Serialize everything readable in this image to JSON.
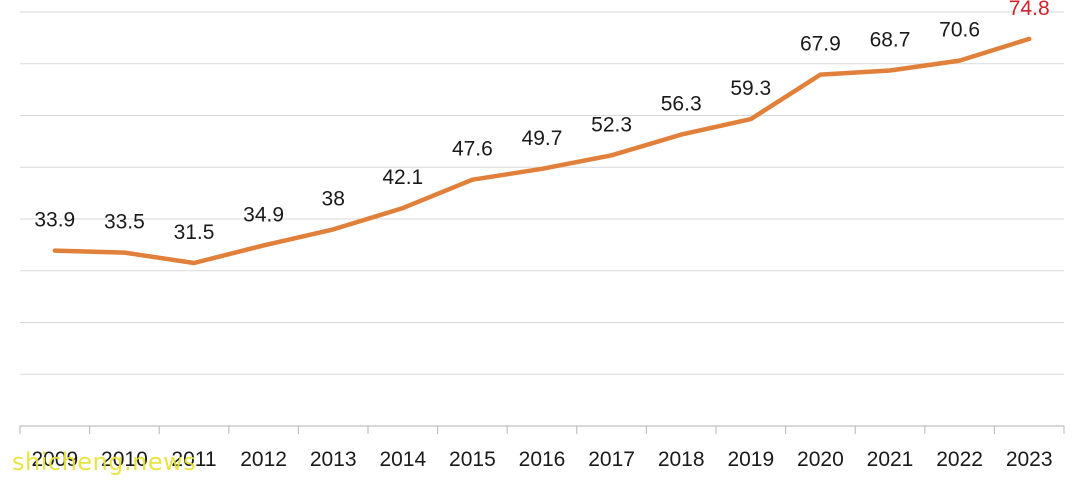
{
  "chart_data": {
    "type": "line",
    "x": [
      "2009",
      "2010",
      "2011",
      "2012",
      "2013",
      "2014",
      "2015",
      "2016",
      "2017",
      "2018",
      "2019",
      "2020",
      "2021",
      "2022",
      "2023"
    ],
    "series": [
      {
        "values": [
          33.9,
          33.5,
          31.5,
          34.9,
          38,
          42.1,
          47.6,
          49.7,
          52.3,
          56.3,
          59.3,
          67.9,
          68.7,
          70.6,
          74.8
        ]
      }
    ],
    "data_labels": [
      "33.9",
      "33.5",
      "31.5",
      "34.9",
      "38",
      "42.1",
      "47.6",
      "49.7",
      "52.3",
      "56.3",
      "59.3",
      "67.9",
      "68.7",
      "70.6",
      "74.8"
    ],
    "ylim": [
      0,
      80
    ],
    "grid": true,
    "line_color": "#e0803b",
    "grid_color": "#d9d9d9",
    "highlight_label_color": "#d0242b",
    "highlight_index": 14
  },
  "watermark": "shicheng.news"
}
